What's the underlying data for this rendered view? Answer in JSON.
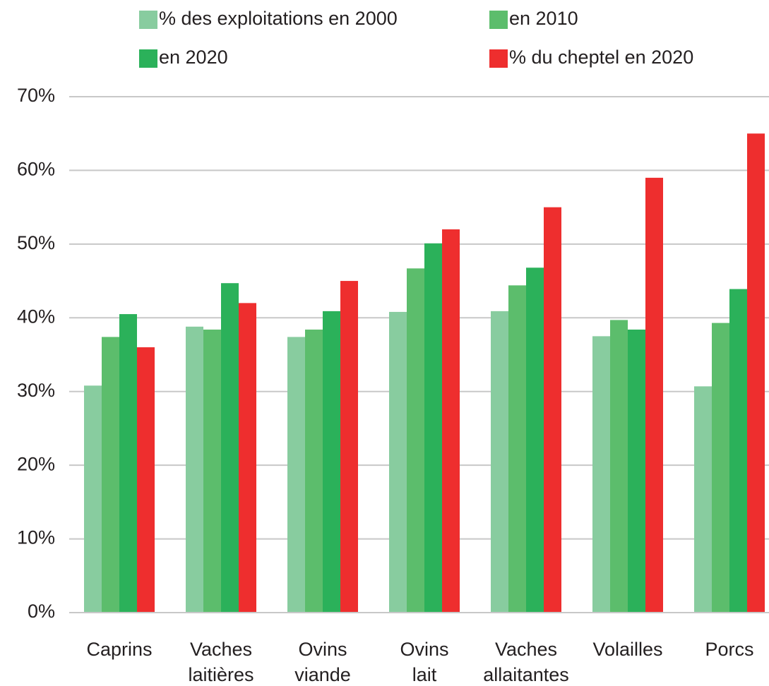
{
  "chart_data": {
    "type": "bar",
    "categories": [
      "Caprins",
      "Vaches laitières",
      "Ovins viande",
      "Ovins lait",
      "Vaches allaitantes",
      "Volailles",
      "Porcs"
    ],
    "series": [
      {
        "name": "% des exploitations en 2000",
        "color": "#88cc9f",
        "values": [
          30.8,
          38.8,
          37.4,
          40.8,
          40.9,
          37.5,
          30.7
        ]
      },
      {
        "name": "en 2010",
        "color": "#5cbd6c",
        "values": [
          37.4,
          38.4,
          38.4,
          46.7,
          44.4,
          39.7,
          39.3
        ]
      },
      {
        "name": "en 2020",
        "color": "#2bb15a",
        "values": [
          40.5,
          44.7,
          40.9,
          50.1,
          46.8,
          38.4,
          43.9
        ]
      },
      {
        "name": "% du cheptel en 2020",
        "color": "#ee2e2e",
        "values": [
          36,
          42,
          45,
          52,
          55,
          59,
          65
        ]
      }
    ],
    "ylim": [
      0,
      70
    ],
    "yticks": [
      {
        "value": 0,
        "label": "0%"
      },
      {
        "value": 10,
        "label": "10%"
      },
      {
        "value": 20,
        "label": "20%"
      },
      {
        "value": 30,
        "label": "30%"
      },
      {
        "value": 40,
        "label": "40%"
      },
      {
        "value": 50,
        "label": "50%"
      },
      {
        "value": 60,
        "label": "60%"
      },
      {
        "value": 70,
        "label": "70%"
      }
    ],
    "grid": true
  }
}
